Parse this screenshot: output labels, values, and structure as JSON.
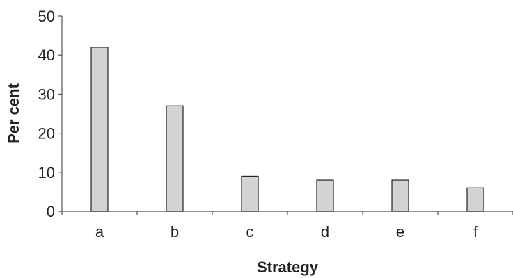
{
  "chart_data": {
    "type": "bar",
    "categories": [
      "a",
      "b",
      "c",
      "d",
      "e",
      "f"
    ],
    "values": [
      42,
      27,
      9,
      8,
      8,
      6
    ],
    "xlabel": "Strategy",
    "ylabel": "Per cent",
    "ylim": [
      0,
      50
    ],
    "yticks": [
      "0",
      "10",
      "20",
      "30",
      "40",
      "50"
    ],
    "grid": false,
    "legend": "none",
    "colors": {
      "bar_fill": "#d3d3d3",
      "bar_stroke": "#222222",
      "axis": "#555555",
      "text": "#222222"
    }
  }
}
